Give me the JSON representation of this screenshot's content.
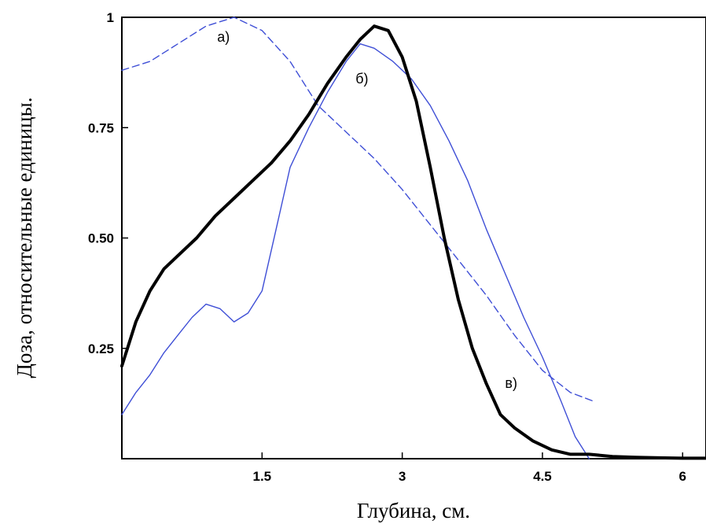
{
  "chart_data": {
    "type": "line",
    "title": "",
    "xlabel": "Глубина, см.",
    "ylabel": "Доза, относительные единицы.",
    "xlim": [
      0.0,
      6.25
    ],
    "ylim": [
      0.0,
      1.0
    ],
    "xticks": [
      1.5,
      3,
      4.5,
      6
    ],
    "xtick_labels": [
      "1.5",
      "3",
      "4.5",
      "6"
    ],
    "yticks": [
      0.25,
      0.5,
      0.75,
      1
    ],
    "ytick_labels": [
      "0.25",
      "0.50",
      "0.75",
      "1"
    ],
    "grid": false,
    "series": [
      {
        "name": "а)",
        "color": "#3f4fd6",
        "style": "dashed",
        "x": [
          0.0,
          0.3,
          0.6,
          0.9,
          1.2,
          1.5,
          1.8,
          2.1,
          2.4,
          2.7,
          3.0,
          3.3,
          3.6,
          3.9,
          4.2,
          4.5,
          4.8,
          5.05
        ],
        "y": [
          0.88,
          0.9,
          0.94,
          0.98,
          1.0,
          0.97,
          0.9,
          0.8,
          0.74,
          0.68,
          0.61,
          0.53,
          0.45,
          0.37,
          0.28,
          0.2,
          0.15,
          0.13
        ]
      },
      {
        "name": "б)",
        "color": "#3f4fd6",
        "style": "solid",
        "x": [
          0.0,
          0.15,
          0.3,
          0.45,
          0.6,
          0.75,
          0.9,
          1.05,
          1.2,
          1.35,
          1.5,
          1.65,
          1.8,
          2.0,
          2.2,
          2.4,
          2.55,
          2.7,
          2.9,
          3.1,
          3.3,
          3.5,
          3.7,
          3.9,
          4.1,
          4.3,
          4.5,
          4.7,
          4.85,
          5.0
        ],
        "y": [
          0.1,
          0.15,
          0.19,
          0.24,
          0.28,
          0.32,
          0.35,
          0.34,
          0.31,
          0.33,
          0.38,
          0.52,
          0.66,
          0.75,
          0.83,
          0.9,
          0.94,
          0.93,
          0.9,
          0.86,
          0.8,
          0.72,
          0.63,
          0.52,
          0.42,
          0.32,
          0.23,
          0.13,
          0.05,
          0.0
        ]
      },
      {
        "name": "в)",
        "color": "#000000",
        "style": "solid-thick",
        "x": [
          0.0,
          0.15,
          0.3,
          0.45,
          0.6,
          0.8,
          1.0,
          1.2,
          1.4,
          1.6,
          1.8,
          2.0,
          2.2,
          2.4,
          2.55,
          2.7,
          2.85,
          3.0,
          3.15,
          3.3,
          3.45,
          3.6,
          3.75,
          3.9,
          4.05,
          4.2,
          4.4,
          4.6,
          4.8,
          5.0,
          5.25,
          5.5,
          5.75,
          6.0,
          6.25
        ],
        "y": [
          0.21,
          0.31,
          0.38,
          0.43,
          0.46,
          0.5,
          0.55,
          0.59,
          0.63,
          0.67,
          0.72,
          0.78,
          0.85,
          0.91,
          0.95,
          0.98,
          0.97,
          0.91,
          0.81,
          0.66,
          0.5,
          0.36,
          0.25,
          0.17,
          0.1,
          0.07,
          0.04,
          0.02,
          0.01,
          0.01,
          0.005,
          0.003,
          0.002,
          0.001,
          0.001
        ]
      }
    ],
    "annotations": [
      {
        "text": "а)",
        "x": 1.02,
        "y": 0.945
      },
      {
        "text": "б)",
        "x": 2.5,
        "y": 0.85
      },
      {
        "text": "в)",
        "x": 4.1,
        "y": 0.16
      }
    ]
  }
}
